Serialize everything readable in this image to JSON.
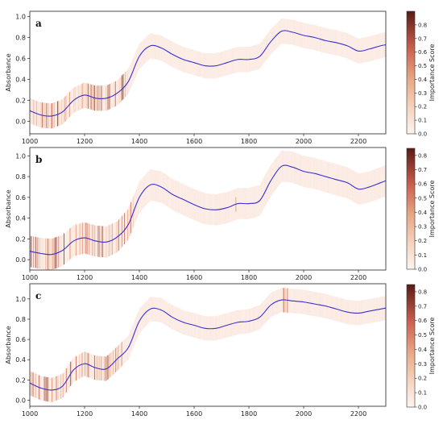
{
  "figure": {
    "colors": {
      "curve": "#3b2fd0",
      "band": "#fbe7df",
      "cmap_low": "#fdf4ef",
      "cmap_high": "#5c1b16"
    }
  },
  "chart_data": [
    {
      "type": "line",
      "panel_label": "a",
      "ylabel": "Absorbance",
      "xlabel": "",
      "xlim": [
        1000,
        2300
      ],
      "xticks": [
        "1000",
        "1200",
        "1400",
        "1600",
        "1800",
        "2000",
        "2200"
      ],
      "ylim": [
        -0.12,
        1.05
      ],
      "yticks": [
        "0.0",
        "0.2",
        "0.4",
        "0.6",
        "0.8",
        "1.0"
      ],
      "series": [
        {
          "x": [
            1000,
            1040,
            1080,
            1120,
            1160,
            1200,
            1240,
            1280,
            1320,
            1360,
            1400,
            1440,
            1480,
            1520,
            1560,
            1600,
            1640,
            1680,
            1720,
            1760,
            1800,
            1840,
            1880,
            1920,
            1960,
            2000,
            2040,
            2080,
            2120,
            2160,
            2200,
            2240,
            2280,
            2300
          ],
          "y": [
            0.1,
            0.06,
            0.05,
            0.09,
            0.2,
            0.25,
            0.22,
            0.22,
            0.27,
            0.38,
            0.62,
            0.72,
            0.7,
            0.64,
            0.59,
            0.56,
            0.53,
            0.53,
            0.56,
            0.59,
            0.59,
            0.62,
            0.76,
            0.86,
            0.85,
            0.82,
            0.8,
            0.77,
            0.75,
            0.72,
            0.67,
            0.69,
            0.72,
            0.73
          ]
        }
      ],
      "band_halfwidth": 0.12,
      "importance_regions": [
        {
          "from": 1000,
          "to": 1360,
          "level": 0.45
        },
        {
          "from": 1360,
          "to": 2300,
          "level": 0.05
        }
      ],
      "colorbar": {
        "label": "Importance Score",
        "ticks": [
          "0.0",
          "0.1",
          "0.2",
          "0.3",
          "0.4",
          "0.5",
          "0.6",
          "0.7",
          "0.8"
        ],
        "max": 0.9
      }
    },
    {
      "type": "line",
      "panel_label": "b",
      "ylabel": "Absorbance",
      "xlabel": "",
      "xlim": [
        1000,
        2300
      ],
      "xticks": [
        "1000",
        "1200",
        "1400",
        "1600",
        "1800",
        "2000",
        "2200"
      ],
      "ylim": [
        -0.1,
        1.08
      ],
      "yticks": [
        "0.0",
        "0.2",
        "0.4",
        "0.6",
        "0.8",
        "1.0"
      ],
      "series": [
        {
          "x": [
            1000,
            1040,
            1080,
            1120,
            1160,
            1200,
            1240,
            1280,
            1320,
            1360,
            1400,
            1440,
            1480,
            1520,
            1560,
            1600,
            1640,
            1680,
            1720,
            1760,
            1800,
            1840,
            1880,
            1920,
            1960,
            2000,
            2040,
            2080,
            2120,
            2160,
            2200,
            2240,
            2280,
            2300
          ],
          "y": [
            0.08,
            0.06,
            0.05,
            0.09,
            0.18,
            0.21,
            0.18,
            0.17,
            0.22,
            0.34,
            0.6,
            0.72,
            0.7,
            0.63,
            0.58,
            0.53,
            0.49,
            0.48,
            0.5,
            0.54,
            0.54,
            0.57,
            0.76,
            0.9,
            0.89,
            0.85,
            0.83,
            0.8,
            0.77,
            0.74,
            0.68,
            0.7,
            0.74,
            0.76
          ]
        }
      ],
      "band_halfwidth": 0.15,
      "importance_regions": [
        {
          "from": 1000,
          "to": 1380,
          "level": 0.5
        },
        {
          "from": 1750,
          "to": 1755,
          "level": 0.6
        },
        {
          "from": 1380,
          "to": 2300,
          "level": 0.04
        }
      ],
      "colorbar": {
        "label": "Importance Score",
        "ticks": [
          "0.0",
          "0.1",
          "0.2",
          "0.3",
          "0.4",
          "0.5",
          "0.6",
          "0.7",
          "0.8"
        ],
        "max": 0.85
      }
    },
    {
      "type": "line",
      "panel_label": "c",
      "ylabel": "Absorbance",
      "xlabel": "",
      "xlim": [
        1000,
        2300
      ],
      "xticks": [
        "1000",
        "1200",
        "1400",
        "1600",
        "1800",
        "2000",
        "2200"
      ],
      "ylim": [
        -0.06,
        1.15
      ],
      "yticks": [
        "0.0",
        "0.2",
        "0.4",
        "0.6",
        "0.8",
        "1.0"
      ],
      "series": [
        {
          "x": [
            1000,
            1040,
            1080,
            1120,
            1160,
            1200,
            1240,
            1280,
            1320,
            1360,
            1400,
            1440,
            1480,
            1520,
            1560,
            1600,
            1640,
            1680,
            1720,
            1760,
            1800,
            1840,
            1880,
            1920,
            1960,
            2000,
            2040,
            2080,
            2120,
            2160,
            2200,
            2240,
            2280,
            2300
          ],
          "y": [
            0.17,
            0.12,
            0.1,
            0.14,
            0.3,
            0.36,
            0.32,
            0.31,
            0.41,
            0.52,
            0.78,
            0.9,
            0.89,
            0.82,
            0.77,
            0.74,
            0.71,
            0.71,
            0.74,
            0.77,
            0.78,
            0.82,
            0.94,
            0.99,
            0.98,
            0.97,
            0.95,
            0.93,
            0.9,
            0.87,
            0.86,
            0.88,
            0.9,
            0.91
          ]
        }
      ],
      "band_halfwidth": 0.12,
      "importance_regions": [
        {
          "from": 1000,
          "to": 1340,
          "level": 0.45
        },
        {
          "from": 1925,
          "to": 1945,
          "level": 0.35
        },
        {
          "from": 1340,
          "to": 2300,
          "level": 0.04
        }
      ],
      "colorbar": {
        "label": "Importance Score",
        "ticks": [
          "0.0",
          "0.1",
          "0.2",
          "0.3",
          "0.4",
          "0.5",
          "0.6",
          "0.7",
          "0.8"
        ],
        "max": 0.85
      }
    }
  ]
}
